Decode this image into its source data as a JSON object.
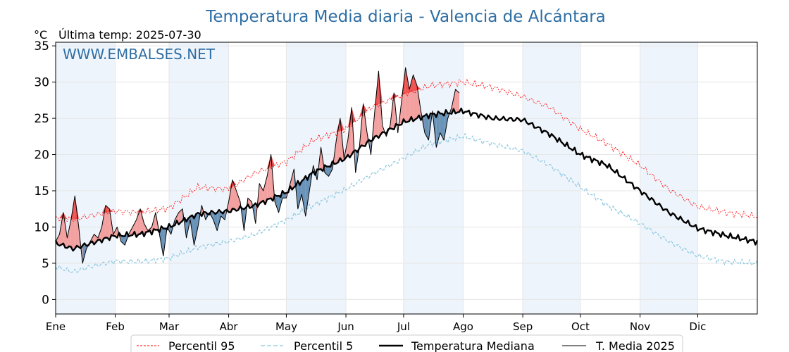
{
  "chart_data": {
    "type": "line",
    "title": "Temperatura Media diaria - Valencia de Alcántara",
    "ylabel": "°C",
    "last_temp_text": "Última temp: 2025-07-30",
    "watermark": "WWW.EMBALSES.NET",
    "ylim": [
      -2,
      35.5
    ],
    "yticks": [
      "0",
      "5",
      "10",
      "15",
      "20",
      "25",
      "30",
      "35"
    ],
    "months": [
      "Ene",
      "Feb",
      "Mar",
      "Abr",
      "May",
      "Jun",
      "Jul",
      "Ago",
      "Sep",
      "Oct",
      "Nov",
      "Dic"
    ],
    "x_unit": "day_of_year",
    "xlim": [
      1,
      366
    ],
    "grid": true,
    "legend_position": "bottom",
    "colors": {
      "p95": "#ff0000",
      "p5": "#8cc8e0",
      "median": "#000000",
      "current": "#000000",
      "above_fill": "#f2a0a0",
      "above_strong": "#ee5555",
      "below_fill": "#6a93b8",
      "shade": "#eef4fb",
      "title": "#2f6ea3"
    },
    "series": [
      {
        "name": "Percentil 95",
        "key": "p95",
        "x": [
          1,
          10,
          20,
          32,
          45,
          60,
          75,
          91,
          105,
          121,
          135,
          152,
          165,
          182,
          196,
          213,
          228,
          244,
          258,
          274,
          288,
          305,
          320,
          335,
          350,
          365
        ],
        "values": [
          11.3,
          11.0,
          11.6,
          12.2,
          12.0,
          12.6,
          15.5,
          15.2,
          17.5,
          19.0,
          22.0,
          23.5,
          26.5,
          28.3,
          29.5,
          30.0,
          29.3,
          28.0,
          26.5,
          23.5,
          21.5,
          18.5,
          15.2,
          12.8,
          12.0,
          11.5
        ]
      },
      {
        "name": "Percentil 5",
        "key": "p5",
        "x": [
          1,
          10,
          20,
          32,
          45,
          60,
          75,
          91,
          105,
          121,
          135,
          152,
          165,
          182,
          196,
          213,
          228,
          244,
          258,
          274,
          288,
          305,
          320,
          335,
          350,
          365
        ],
        "values": [
          4.5,
          3.8,
          4.6,
          5.3,
          5.2,
          5.7,
          7.2,
          8.0,
          9.0,
          11.0,
          13.0,
          15.2,
          17.2,
          19.5,
          21.5,
          22.5,
          21.5,
          20.5,
          18.5,
          15.5,
          13.0,
          10.5,
          8.0,
          6.0,
          5.2,
          5.0
        ]
      },
      {
        "name": "Temperatura Mediana",
        "key": "median",
        "x": [
          1,
          10,
          20,
          32,
          45,
          60,
          75,
          91,
          105,
          121,
          135,
          152,
          165,
          182,
          196,
          213,
          228,
          244,
          258,
          274,
          288,
          305,
          320,
          335,
          350,
          365
        ],
        "values": [
          7.8,
          7.0,
          7.8,
          8.8,
          9.0,
          10.0,
          11.8,
          12.2,
          13.0,
          14.8,
          17.5,
          19.5,
          22.0,
          24.5,
          25.5,
          26.0,
          25.0,
          24.8,
          22.8,
          20.0,
          18.5,
          15.0,
          12.0,
          9.8,
          8.8,
          8.0
        ]
      },
      {
        "name": "T. Media 2025",
        "key": "current",
        "x": [
          1,
          3,
          5,
          7,
          9,
          11,
          13,
          15,
          17,
          19,
          21,
          23,
          25,
          27,
          29,
          31,
          33,
          35,
          37,
          39,
          41,
          43,
          45,
          47,
          49,
          51,
          53,
          55,
          57,
          59,
          61,
          63,
          65,
          67,
          69,
          71,
          73,
          75,
          77,
          79,
          81,
          83,
          85,
          87,
          89,
          91,
          93,
          95,
          97,
          99,
          101,
          103,
          105,
          107,
          109,
          111,
          113,
          115,
          117,
          119,
          121,
          123,
          125,
          127,
          129,
          131,
          133,
          135,
          137,
          139,
          141,
          143,
          145,
          147,
          149,
          151,
          153,
          155,
          157,
          159,
          161,
          163,
          165,
          167,
          169,
          171,
          173,
          175,
          177,
          179,
          181,
          183,
          185,
          187,
          189,
          191,
          193,
          195,
          197,
          199,
          201,
          203,
          205,
          207,
          209,
          211
        ],
        "values": [
          8,
          9,
          12,
          8.5,
          11,
          14.3,
          10,
          5,
          7,
          8,
          9,
          8.5,
          10,
          13,
          12.5,
          9,
          10,
          8,
          7.5,
          9,
          10,
          11,
          12.5,
          10.5,
          9.5,
          10,
          12,
          9,
          6,
          10,
          9,
          11,
          12,
          12.5,
          8.5,
          11,
          7.5,
          10,
          13,
          11,
          12,
          11,
          9.5,
          11.5,
          11,
          13.5,
          16.5,
          15,
          13.5,
          9.5,
          14,
          13.5,
          10.5,
          16,
          15,
          17,
          20,
          13.5,
          12,
          14,
          14,
          16,
          18,
          12.5,
          14.5,
          11.5,
          15,
          18.5,
          16.5,
          21,
          17.5,
          17,
          18,
          22,
          25,
          19.5,
          22,
          26.5,
          17.5,
          21,
          27,
          23,
          20,
          26,
          31.5,
          24,
          22.5,
          24,
          28.5,
          23,
          27.5,
          32,
          29,
          31,
          29.5,
          26,
          23,
          22,
          26,
          21,
          23,
          22,
          25,
          26.5,
          29,
          28.5
        ]
      }
    ],
    "legend": [
      "Percentil 95",
      "Percentil 5",
      "Temperatura Mediana",
      "T. Media 2025"
    ]
  }
}
